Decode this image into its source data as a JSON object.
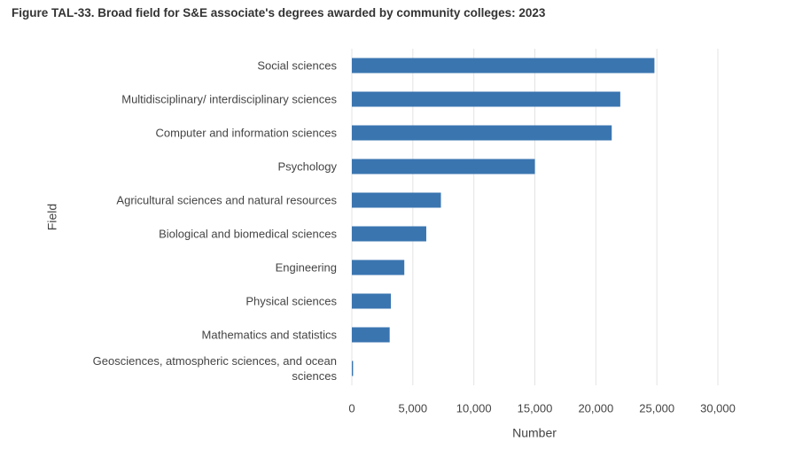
{
  "chart_data": {
    "type": "bar",
    "orientation": "horizontal",
    "title": "Figure TAL-33. Broad field for S&E associate's degrees awarded by community colleges: 2023",
    "x_label": "Number",
    "y_label": "Field",
    "categories": [
      "Social sciences",
      "Multidisciplinary/ interdisciplinary sciences",
      "Computer and information sciences",
      "Psychology",
      "Agricultural sciences and natural resources",
      "Biological and biomedical sciences",
      "Engineering",
      "Physical sciences",
      "Mathematics and statistics",
      "Geosciences, atmospheric sciences, and ocean sciences"
    ],
    "values": [
      24800,
      22000,
      21300,
      15000,
      7300,
      6100,
      4300,
      3200,
      3100,
      100
    ],
    "color": "#3a75b0",
    "xlim": [
      0,
      30000
    ],
    "xticks": [
      0,
      {
        "value": 5000,
        "label": "5,000"
      },
      {
        "value": 10000,
        "label": "10,000"
      },
      {
        "value": 15000,
        "label": "15,000"
      },
      {
        "value": 20000,
        "label": "20,000"
      },
      {
        "value": 25000,
        "label": "25,000"
      },
      {
        "value": 30000,
        "label": "30,000"
      }
    ],
    "grid": true
  }
}
